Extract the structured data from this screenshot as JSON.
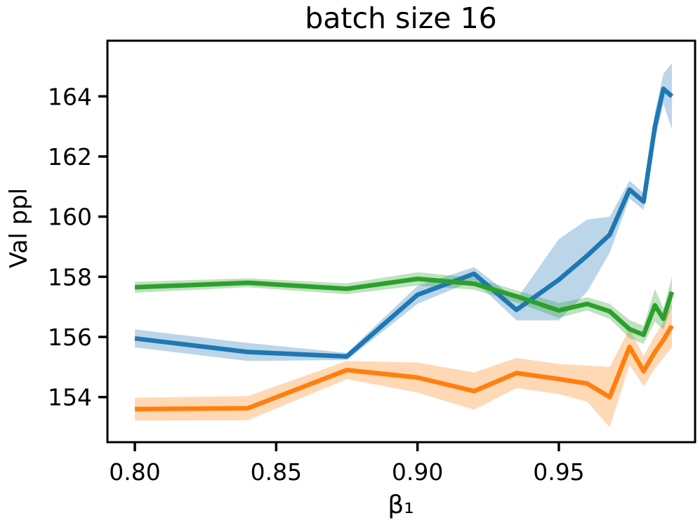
{
  "chart_data": {
    "type": "line",
    "title": "batch size 16",
    "xlabel": "β₁",
    "ylabel": "Val ppl",
    "xlim": [
      0.7903,
      0.9982
    ],
    "ylim": [
      152.5,
      165.85
    ],
    "grid": false,
    "legend": "none",
    "band_alpha": 0.3,
    "xticks": {
      "values": [
        0.8,
        0.85,
        0.9,
        0.95
      ],
      "labels": [
        "0.80",
        "0.85",
        "0.90",
        "0.95"
      ]
    },
    "yticks": {
      "values": [
        154,
        156,
        158,
        160,
        162,
        164
      ],
      "labels": [
        "154",
        "156",
        "158",
        "160",
        "162",
        "164"
      ]
    },
    "x": [
      0.8,
      0.84,
      0.875,
      0.9,
      0.92,
      0.935,
      0.95,
      0.96,
      0.968,
      0.975,
      0.98,
      0.984,
      0.987,
      0.99
    ],
    "series": [
      {
        "name": "blue-line",
        "color": "#1f77b4",
        "values": [
          155.95,
          155.5,
          155.35,
          157.4,
          158.1,
          156.9,
          157.9,
          158.7,
          159.4,
          160.9,
          160.5,
          163.0,
          164.25,
          164.0
        ],
        "band_halfwidth": [
          0.3,
          0.3,
          0.12,
          0.3,
          0.22,
          0.35,
          1.35,
          1.2,
          0.6,
          0.3,
          0.28,
          0.45,
          0.5,
          1.1
        ]
      },
      {
        "name": "orange-line",
        "color": "#ff7f0e",
        "values": [
          153.6,
          153.63,
          154.9,
          154.65,
          154.2,
          154.8,
          154.6,
          154.45,
          154.0,
          155.67,
          154.86,
          155.5,
          155.9,
          156.37
        ],
        "band_halfwidth": [
          0.38,
          0.4,
          0.3,
          0.5,
          0.62,
          0.5,
          0.5,
          0.6,
          1.0,
          0.6,
          0.5,
          0.55,
          0.6,
          0.7
        ]
      },
      {
        "name": "green-line",
        "color": "#2ca02c",
        "values": [
          157.65,
          157.8,
          157.6,
          157.93,
          157.77,
          157.35,
          156.88,
          157.1,
          156.85,
          156.26,
          156.07,
          157.05,
          156.6,
          157.5
        ],
        "band_halfwidth": [
          0.18,
          0.15,
          0.18,
          0.22,
          0.2,
          0.2,
          0.25,
          0.22,
          0.25,
          0.3,
          0.3,
          0.55,
          0.35,
          0.5
        ]
      }
    ]
  }
}
